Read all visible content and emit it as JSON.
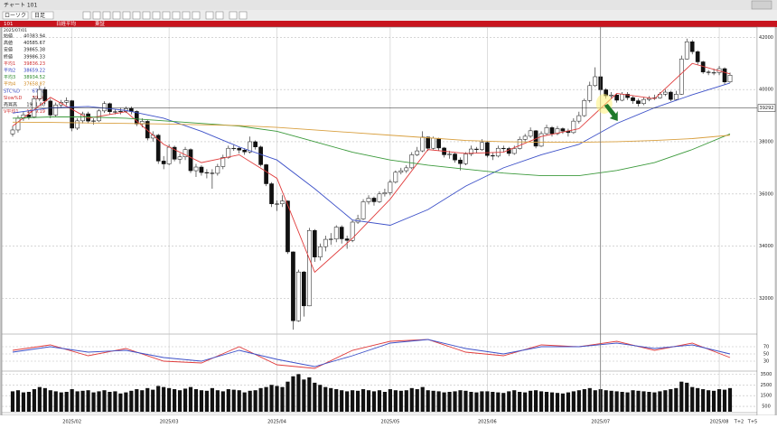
{
  "window": {
    "title": "チャート  101",
    "chart_style": "ローソク",
    "period": "日足"
  },
  "header": {
    "code": "101",
    "name": "日経平均",
    "exchange": "東証",
    "date": "2025/07/01"
  },
  "info": [
    {
      "label": "始値",
      "value": "40383.94",
      "color": "#222222"
    },
    {
      "label": "高値",
      "value": "40585.67",
      "color": "#222222"
    },
    {
      "label": "安値",
      "value": "39865.38",
      "color": "#222222"
    },
    {
      "label": "終値",
      "value": "39986.33",
      "color": "#222222"
    },
    {
      "label": "平均1",
      "value": "39836.23",
      "color": "#d03030"
    },
    {
      "label": "平均2",
      "value": "38659.22",
      "color": "#3040c0"
    },
    {
      "label": "平均3",
      "value": "38934.52",
      "color": "#2a8a2a"
    },
    {
      "label": "平均4",
      "value": "37658.87",
      "color": "#d08a20"
    },
    {
      "label": "STC%D",
      "value": "67.62",
      "color": "#3040c0"
    },
    {
      "label": "Slow%D",
      "value": "59.98",
      "color": "#d03030"
    },
    {
      "label": "売買高",
      "value": "1951.00",
      "color": "#222222"
    },
    {
      "label": "V平均1",
      "value": "1909.19",
      "color": "#d03030"
    }
  ],
  "future_labels": [
    "T+2",
    "T+5"
  ],
  "chart_data": [
    {
      "type": "candlestick",
      "categories": [
        null,
        null,
        null,
        null,
        null,
        null,
        null,
        null,
        null,
        null,
        null,
        "2025/02",
        null,
        null,
        null,
        null,
        null,
        null,
        null,
        null,
        null,
        null,
        null,
        null,
        null,
        null,
        null,
        null,
        null,
        "2025/03",
        null,
        null,
        null,
        null,
        null,
        null,
        null,
        null,
        null,
        null,
        null,
        null,
        null,
        null,
        null,
        null,
        null,
        null,
        null,
        "2025/04",
        null,
        null,
        null,
        null,
        null,
        null,
        null,
        null,
        null,
        null,
        null,
        null,
        null,
        null,
        null,
        null,
        null,
        null,
        null,
        null,
        "2025/05",
        null,
        null,
        null,
        null,
        null,
        null,
        null,
        null,
        null,
        null,
        null,
        null,
        null,
        null,
        null,
        null,
        null,
        "2025/06",
        null,
        null,
        null,
        null,
        null,
        null,
        null,
        null,
        null,
        null,
        null,
        null,
        null,
        null,
        null,
        null,
        null,
        null,
        null,
        null,
        "2025/07",
        null,
        null,
        null,
        null,
        null,
        null,
        null,
        null,
        null,
        null,
        null,
        null,
        null,
        null,
        null,
        null,
        null,
        null,
        null,
        null,
        null,
        "2025/08",
        null,
        null
      ],
      "open": [
        38300,
        38450,
        38900,
        39030,
        38950,
        39650,
        40000,
        39560,
        39020,
        39410,
        39510,
        39570,
        38520,
        38800,
        39070,
        38790,
        38800,
        39180,
        39460,
        39150,
        39150,
        39170,
        39270,
        39160,
        38680,
        38780,
        38140,
        38250,
        37260,
        37150,
        37790,
        37330,
        37420,
        37700,
        36890,
        37030,
        36820,
        36800,
        36790,
        37050,
        37400,
        37750,
        37750,
        37680,
        37610,
        38000,
        37800,
        37120,
        36390,
        35620,
        35620,
        35730,
        33780,
        31140,
        33010,
        31710,
        34600,
        33580,
        33980,
        34260,
        34270,
        34730,
        34280,
        34220,
        34920,
        35040,
        35700,
        35840,
        35700,
        36000,
        36050,
        36450,
        36830,
        36890,
        37000,
        37500,
        37650,
        38180,
        37750,
        38130,
        37760,
        37500,
        37530,
        37300,
        37160,
        37530,
        37720,
        37700,
        37970,
        37470,
        37450,
        37750,
        37740,
        37550,
        37740,
        38090,
        38210,
        38420,
        37830,
        38310,
        38540,
        38310,
        38500,
        38410,
        38350,
        38790,
        39000,
        39580,
        40150,
        40490,
        39990,
        39760,
        39790,
        39590,
        39820,
        39690,
        39570,
        39460,
        39620,
        39660,
        39680,
        39820,
        39900,
        39620,
        39820,
        41170,
        41830,
        41450,
        41060,
        40670,
        40650,
        40650,
        40800,
        40290
      ],
      "high": [
        38600,
        39000,
        39150,
        39200,
        39750,
        40150,
        40100,
        39650,
        39500,
        39600,
        39700,
        39600,
        38900,
        39150,
        39150,
        38900,
        39250,
        39550,
        39500,
        39250,
        39300,
        39350,
        39350,
        39200,
        38900,
        38850,
        38400,
        38300,
        37450,
        37900,
        37850,
        37550,
        37800,
        37750,
        37150,
        37100,
        36950,
        36950,
        37150,
        37500,
        37850,
        37900,
        37800,
        37750,
        38200,
        38050,
        37850,
        37150,
        36450,
        35750,
        35950,
        35750,
        33800,
        33100,
        33050,
        34700,
        34650,
        34100,
        34400,
        34500,
        34800,
        34800,
        34400,
        35000,
        35200,
        35800,
        35950,
        35900,
        36100,
        36200,
        36550,
        36900,
        37000,
        37100,
        37600,
        37800,
        38400,
        38200,
        38200,
        38150,
        37800,
        37650,
        37600,
        37400,
        37600,
        37850,
        37800,
        38100,
        38000,
        37600,
        37850,
        37850,
        37800,
        37850,
        38200,
        38300,
        38550,
        38450,
        38400,
        38650,
        38600,
        38600,
        38550,
        38500,
        38900,
        39150,
        39650,
        40300,
        40850,
        40550,
        40050,
        39900,
        39850,
        39900,
        39900,
        39750,
        39650,
        39700,
        39750,
        39800,
        39900,
        40000,
        39950,
        39950,
        41300,
        41950,
        41900,
        41500,
        41100,
        40750,
        40800,
        40900,
        40850,
        40650
      ],
      "low": [
        38200,
        38350,
        38800,
        38850,
        38900,
        39550,
        39450,
        38900,
        38950,
        39300,
        39400,
        38400,
        38450,
        38700,
        38700,
        38650,
        38750,
        39100,
        39050,
        39050,
        39050,
        39100,
        39050,
        38600,
        38550,
        38050,
        38000,
        37150,
        36950,
        37100,
        37250,
        37150,
        37300,
        36800,
        36650,
        36700,
        36600,
        36200,
        36700,
        36950,
        37350,
        37650,
        37550,
        37500,
        37550,
        37700,
        37050,
        36300,
        35500,
        35350,
        35500,
        33700,
        30800,
        31100,
        31300,
        31700,
        33400,
        33450,
        33800,
        34050,
        34150,
        34100,
        33900,
        34150,
        34850,
        35000,
        35600,
        35550,
        35650,
        35900,
        35950,
        36400,
        36750,
        36800,
        36950,
        37450,
        37600,
        37650,
        37700,
        37650,
        37400,
        37350,
        37200,
        36900,
        37100,
        37450,
        37550,
        37650,
        37400,
        37300,
        37400,
        37600,
        37450,
        37500,
        37700,
        38000,
        38150,
        37750,
        37800,
        38250,
        38200,
        38250,
        38300,
        38200,
        38300,
        38700,
        38950,
        39500,
        40100,
        39900,
        39650,
        39650,
        39500,
        39550,
        39600,
        39450,
        39350,
        39400,
        39550,
        39600,
        39650,
        39750,
        39550,
        39600,
        39800,
        41150,
        41350,
        40950,
        40600,
        40550,
        40550,
        40550,
        40200,
        40250
      ],
      "close": [
        38450,
        38900,
        39030,
        38950,
        39650,
        40000,
        39560,
        39020,
        39410,
        39510,
        39570,
        38520,
        38800,
        39070,
        38790,
        38800,
        39180,
        39460,
        39150,
        39150,
        39170,
        39270,
        39160,
        38680,
        38780,
        38140,
        38250,
        37260,
        37150,
        37790,
        37330,
        37420,
        37700,
        36890,
        37030,
        36820,
        36800,
        36790,
        37050,
        37400,
        37750,
        37750,
        37680,
        37610,
        38000,
        37800,
        37120,
        36390,
        35620,
        35620,
        35730,
        33780,
        31140,
        33010,
        31710,
        34600,
        33580,
        33980,
        34260,
        34270,
        34730,
        34280,
        34220,
        34920,
        35040,
        35700,
        35840,
        35700,
        36000,
        36050,
        36450,
        36830,
        36890,
        37000,
        37500,
        37650,
        38180,
        37750,
        38130,
        37760,
        37500,
        37530,
        37300,
        37160,
        37530,
        37720,
        37700,
        37970,
        37470,
        37450,
        37750,
        37740,
        37550,
        37740,
        38090,
        38210,
        38420,
        37830,
        38310,
        38540,
        38310,
        38500,
        38410,
        38350,
        38790,
        39000,
        39580,
        40150,
        40490,
        39990,
        39760,
        39790,
        39590,
        39820,
        39690,
        39570,
        39460,
        39620,
        39660,
        39680,
        39820,
        39900,
        39620,
        39820,
        41170,
        41830,
        41450,
        41060,
        40670,
        40650,
        40650,
        40800,
        40290,
        40550
      ],
      "up_color": "#ffffff",
      "down_color": "#111111",
      "series": [
        {
          "name": "平均1",
          "color": "#e03c3c",
          "x": [
            0,
            7,
            14,
            21,
            28,
            35,
            42,
            49,
            56,
            63,
            70,
            77,
            84,
            91,
            98,
            105,
            112,
            119,
            126,
            133
          ],
          "values": [
            38600,
            39700,
            38900,
            39150,
            37900,
            37200,
            37500,
            36600,
            33000,
            34300,
            35800,
            37700,
            37550,
            37600,
            38200,
            38500,
            39850,
            39650,
            41000,
            40600
          ]
        },
        {
          "name": "平均2",
          "color": "#3c50c8",
          "x": [
            0,
            7,
            14,
            21,
            28,
            35,
            42,
            49,
            56,
            63,
            70,
            77,
            84,
            91,
            98,
            105,
            112,
            119,
            126,
            133
          ],
          "values": [
            39100,
            39300,
            39350,
            39200,
            38900,
            38400,
            37800,
            37300,
            36200,
            35000,
            34800,
            35400,
            36300,
            37000,
            37500,
            37900,
            38700,
            39300,
            39800,
            40250
          ]
        },
        {
          "name": "平均3",
          "color": "#3c9a3c",
          "x": [
            0,
            7,
            14,
            21,
            28,
            35,
            42,
            49,
            56,
            63,
            70,
            77,
            84,
            91,
            98,
            105,
            112,
            119,
            126,
            133
          ],
          "values": [
            38900,
            38950,
            38950,
            38900,
            38800,
            38700,
            38600,
            38400,
            38000,
            37600,
            37300,
            37100,
            36950,
            36800,
            36700,
            36700,
            36900,
            37200,
            37700,
            38300
          ]
        },
        {
          "name": "平均4",
          "color": "#d9a040",
          "x": [
            0,
            7,
            14,
            21,
            28,
            35,
            42,
            49,
            56,
            63,
            70,
            77,
            84,
            91,
            98,
            105,
            112,
            119,
            126,
            133
          ],
          "values": [
            38750,
            38740,
            38720,
            38700,
            38680,
            38650,
            38620,
            38550,
            38450,
            38350,
            38250,
            38150,
            38050,
            38000,
            37980,
            37980,
            38000,
            38050,
            38120,
            38250
          ]
        }
      ],
      "current_price": 39292,
      "ylim": [
        30700,
        42150
      ],
      "yticks": [
        32000,
        34000,
        36000,
        38000,
        40000,
        42000
      ],
      "grid": true
    },
    {
      "type": "line",
      "x": [
        0,
        7,
        14,
        21,
        28,
        35,
        42,
        49,
        56,
        63,
        70,
        77,
        84,
        91,
        98,
        105,
        112,
        119,
        126,
        133
      ],
      "series": [
        {
          "name": "STC%D",
          "color": "#e03c3c",
          "values": [
            60,
            75,
            45,
            65,
            30,
            25,
            70,
            20,
            10,
            60,
            85,
            90,
            55,
            45,
            75,
            70,
            85,
            60,
            80,
            40
          ]
        },
        {
          "name": "Slow%D",
          "color": "#3c50c8",
          "values": [
            55,
            70,
            55,
            60,
            40,
            30,
            60,
            35,
            15,
            45,
            80,
            90,
            65,
            50,
            70,
            70,
            80,
            65,
            75,
            50
          ]
        }
      ],
      "ylim": [
        0,
        100
      ],
      "yticks": [
        30,
        50,
        70
      ],
      "grid": true
    },
    {
      "type": "bar",
      "values": [
        1900,
        2000,
        1800,
        1850,
        2100,
        2300,
        2200,
        2000,
        1900,
        1800,
        1850,
        2100,
        1900,
        1950,
        2000,
        1800,
        1900,
        2000,
        1850,
        1900,
        1700,
        1800,
        1950,
        2100,
        2000,
        2200,
        2050,
        2400,
        2300,
        2200,
        2100,
        2000,
        2150,
        2300,
        2100,
        2000,
        1950,
        2200,
        2000,
        1900,
        2100,
        2050,
        2000,
        1800,
        1950,
        2000,
        2200,
        2300,
        2500,
        2400,
        2300,
        2800,
        3300,
        3500,
        3000,
        3200,
        2700,
        2500,
        2300,
        2200,
        2100,
        2000,
        1900,
        2000,
        1950,
        2100,
        2000,
        1900,
        2000,
        1850,
        2100,
        2000,
        1950,
        2000,
        2200,
        2100,
        2300,
        2000,
        1950,
        1900,
        1800,
        1850,
        1900,
        2000,
        1950,
        1850,
        1800,
        1900,
        1900,
        1850,
        1800,
        1750,
        1900,
        2000,
        1850,
        1800,
        1950,
        2000,
        1900,
        1850,
        1800,
        1750,
        1700,
        1800,
        1900,
        2000,
        2100,
        2200,
        2000,
        2100,
        2000,
        1950,
        1900,
        1850,
        1800,
        2000,
        1950,
        1900,
        1850,
        1800,
        1900,
        2000,
        2100,
        2200,
        2800,
        2700,
        2300,
        2200,
        2100,
        2000,
        1950,
        2100,
        2050,
        2200
      ],
      "color": "#111111",
      "ylim": [
        0,
        3700
      ],
      "yticks": [
        500,
        1500,
        2500,
        3500
      ],
      "grid": true
    }
  ]
}
